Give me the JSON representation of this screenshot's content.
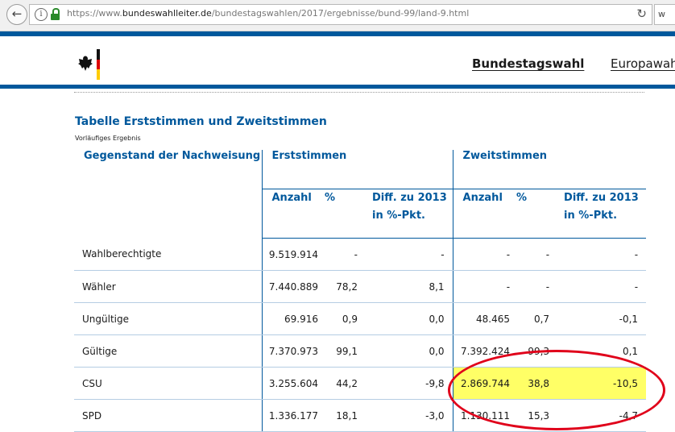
{
  "browser": {
    "url_prefix": "https://www.",
    "url_domain": "bundeswahlleiter.de",
    "url_path": "/bundestagswahlen/2017/ergebnisse/bund-99/land-9.html",
    "search_stub": "w"
  },
  "header": {
    "nav_active": "Bundestagswahl",
    "nav_other": "Europawahl"
  },
  "table": {
    "title": "Tabelle Erststimmen und Zweitstimmen",
    "subtitle": "Vorläufiges Ergebnis",
    "col_group_label": "Gegenstand der Nachweisung",
    "erst_label": "Erststimmen",
    "zweit_label": "Zweitstimmen",
    "sub_anzahl": "Anzahl",
    "sub_pct": "%",
    "sub_diff": "Diff. zu 2013 in %-Pkt.",
    "rows": [
      {
        "label": "Wahlberechtigte",
        "e_anzahl": "9.519.914",
        "e_pct": "-",
        "e_diff": "-",
        "z_anzahl": "-",
        "z_pct": "-",
        "z_diff": "-"
      },
      {
        "label": "Wähler",
        "e_anzahl": "7.440.889",
        "e_pct": "78,2",
        "e_diff": "8,1",
        "z_anzahl": "-",
        "z_pct": "-",
        "z_diff": "-"
      },
      {
        "label": "Ungültige",
        "e_anzahl": "69.916",
        "e_pct": "0,9",
        "e_diff": "0,0",
        "z_anzahl": "48.465",
        "z_pct": "0,7",
        "z_diff": "-0,1"
      },
      {
        "label": "Gültige",
        "e_anzahl": "7.370.973",
        "e_pct": "99,1",
        "e_diff": "0,0",
        "z_anzahl": "7.392.424",
        "z_pct": "99,3",
        "z_diff": "0,1"
      },
      {
        "label": "CSU",
        "e_anzahl": "3.255.604",
        "e_pct": "44,2",
        "e_diff": "-9,8",
        "z_anzahl": "2.869.744",
        "z_pct": "38,8",
        "z_diff": "-10,5"
      },
      {
        "label": "SPD",
        "e_anzahl": "1.336.177",
        "e_pct": "18,1",
        "e_diff": "-3,0",
        "z_anzahl": "1.130.111",
        "z_pct": "15,3",
        "z_diff": "-4,7"
      }
    ]
  },
  "annotation": {
    "highlight_color": "#ffff66",
    "ellipse_color": "#e0001a"
  },
  "colors": {
    "brand_blue": "#00589c"
  }
}
